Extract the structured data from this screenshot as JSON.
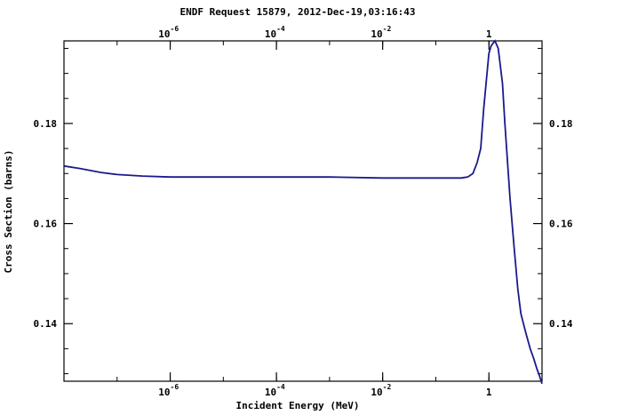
{
  "chart_data": {
    "type": "line",
    "title": "ENDF Request 15879, 2012-Dec-19,03:16:43",
    "xlabel": "Incident Energy (MeV)",
    "ylabel": "Cross Section (barns)",
    "x_scale": "log",
    "xlim": [
      1e-08,
      10
    ],
    "ylim": [
      0.1285,
      0.1965
    ],
    "grid": false,
    "x_ticks": [
      {
        "value": 1e-06,
        "label": "10",
        "exp": "-6"
      },
      {
        "value": 0.0001,
        "label": "10",
        "exp": "-4"
      },
      {
        "value": 0.01,
        "label": "10",
        "exp": "-2"
      },
      {
        "value": 1,
        "label": "1",
        "exp": ""
      }
    ],
    "y_ticks": [
      {
        "value": 0.14,
        "label": "0.14"
      },
      {
        "value": 0.16,
        "label": "0.16"
      },
      {
        "value": 0.18,
        "label": "0.18"
      }
    ],
    "series": [
      {
        "color": "#1a1a8c",
        "x": [
          1e-08,
          2e-08,
          5e-08,
          1e-07,
          3e-07,
          1e-06,
          1e-05,
          0.0001,
          0.001,
          0.01,
          0.1,
          0.3,
          0.4,
          0.5,
          0.6,
          0.7,
          0.8,
          1.0,
          1.1,
          1.3,
          1.5,
          1.8,
          2.0,
          2.5,
          3.0,
          3.5,
          4.0,
          5.0,
          6.0,
          7.0,
          8.0,
          9.0,
          10.0
        ],
        "y": [
          0.1715,
          0.171,
          0.1702,
          0.1698,
          0.1695,
          0.1693,
          0.1693,
          0.1693,
          0.1693,
          0.1691,
          0.1691,
          0.1691,
          0.1693,
          0.17,
          0.1722,
          0.175,
          0.183,
          0.194,
          0.1955,
          0.1965,
          0.195,
          0.188,
          0.18,
          0.165,
          0.155,
          0.147,
          0.142,
          0.138,
          0.135,
          0.133,
          0.131,
          0.1295,
          0.128
        ]
      }
    ]
  }
}
